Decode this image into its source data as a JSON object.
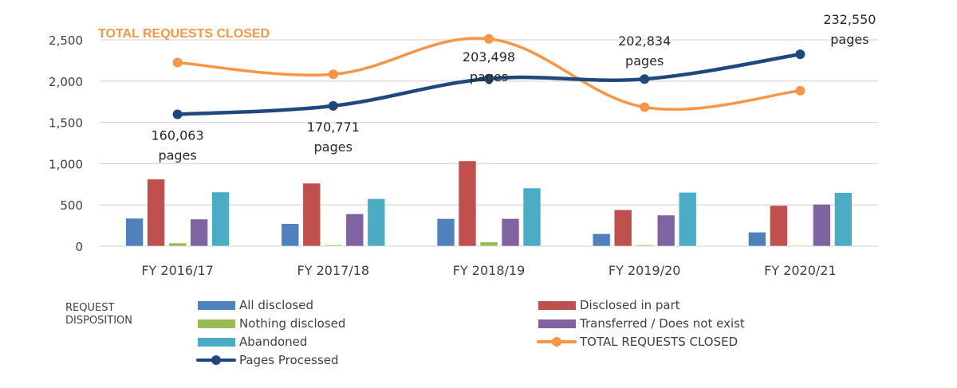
{
  "chart_data": {
    "type": "bar",
    "title": "TOTAL REQUESTS CLOSED",
    "xlabel": "",
    "ylabel": "",
    "ylim": [
      0,
      2500
    ],
    "yticks": [
      0,
      500,
      1000,
      1500,
      2000,
      2500
    ],
    "ytick_labels": [
      "0",
      "500",
      "1,000",
      "1,500",
      "2,000",
      "2,500"
    ],
    "grid": true,
    "categories": [
      "FY 2016/17",
      "FY 2017/18",
      "FY 2018/19",
      "FY 2019/20",
      "FY 2020/21"
    ],
    "series": [
      {
        "name": "All disclosed",
        "kind": "bar",
        "color": "#4F81BD",
        "values": [
          338,
          273,
          334,
          151,
          170
        ]
      },
      {
        "name": "Disclosed in part",
        "kind": "bar",
        "color": "#C0504D",
        "values": [
          812,
          763,
          1034,
          441,
          493
        ]
      },
      {
        "name": "Nothing disclosed",
        "kind": "bar",
        "color": "#9BBB59",
        "values": [
          39,
          15,
          51,
          15,
          10
        ]
      },
      {
        "name": "Transferred / Does not exist",
        "kind": "bar",
        "color": "#8064A2",
        "values": [
          329,
          392,
          334,
          377,
          508
        ]
      },
      {
        "name": "Abandoned",
        "kind": "bar",
        "color": "#4BACC6",
        "values": [
          657,
          576,
          705,
          653,
          650
        ]
      },
      {
        "name": "TOTAL REQUESTS CLOSED",
        "kind": "line",
        "color": "#F79646",
        "values": [
          2225,
          2083,
          2512,
          1684,
          1884
        ]
      },
      {
        "name": "Pages Processed",
        "kind": "line",
        "color": "#1F497D",
        "values": [
          1597,
          1700,
          2029,
          2025,
          2325
        ],
        "data_labels": [
          [
            "160,063",
            "pages"
          ],
          [
            "170,771",
            "pages"
          ],
          [
            "203,498",
            "pages"
          ],
          [
            "202,834",
            "pages"
          ],
          [
            "232,550",
            "pages"
          ]
        ]
      }
    ],
    "legend": {
      "title": [
        "REQUEST",
        "DISPOSITION"
      ],
      "placement": "bottom",
      "entries": [
        "All disclosed",
        "Disclosed in part",
        "Nothing disclosed",
        "Transferred / Does not exist",
        "Abandoned",
        "TOTAL REQUESTS CLOSED",
        "Pages Processed"
      ]
    }
  }
}
